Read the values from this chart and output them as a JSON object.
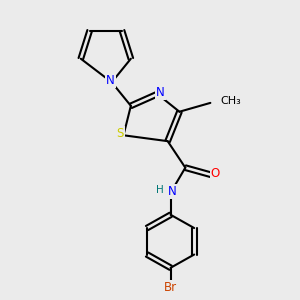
{
  "bg_color": "#ebebeb",
  "atom_colors": {
    "C": "#000000",
    "N": "#0000ff",
    "S": "#cccc00",
    "O": "#ff0000",
    "Br": "#cc4400",
    "H": "#007777"
  },
  "bond_color": "#000000",
  "bond_width": 1.5,
  "font_size": 8.5
}
